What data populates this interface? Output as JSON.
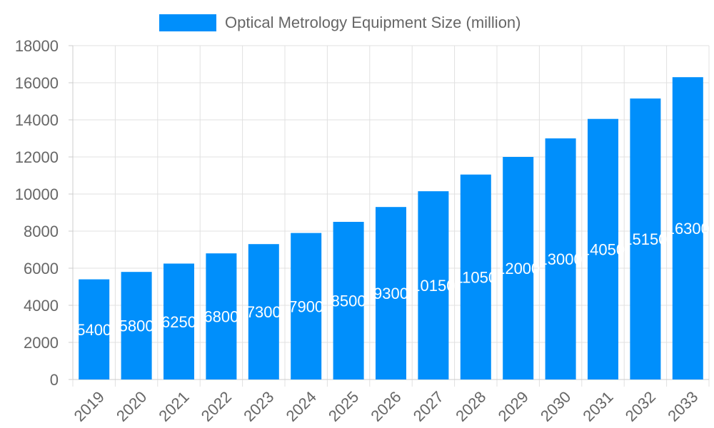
{
  "chart_data": {
    "type": "bar",
    "title": "",
    "xlabel": "",
    "ylabel": "",
    "categories": [
      "2019",
      "2020",
      "2021",
      "2022",
      "2023",
      "2024",
      "2025",
      "2026",
      "2027",
      "2028",
      "2029",
      "2030",
      "2031",
      "2032",
      "2033"
    ],
    "series": [
      {
        "name": "Optical Metrology Equipment Size (million)",
        "values": [
          5400,
          5800,
          6250,
          6800,
          7300,
          7900,
          8500,
          9300,
          10150,
          11050,
          12000,
          13000,
          14050,
          15150,
          16300
        ],
        "color": "#008ffb"
      }
    ],
    "ylim": [
      0,
      18000
    ],
    "yticks": [
      0,
      2000,
      4000,
      6000,
      8000,
      10000,
      12000,
      14000,
      16000,
      18000
    ],
    "grid": true,
    "legend": "top-center",
    "data_labels": true
  }
}
